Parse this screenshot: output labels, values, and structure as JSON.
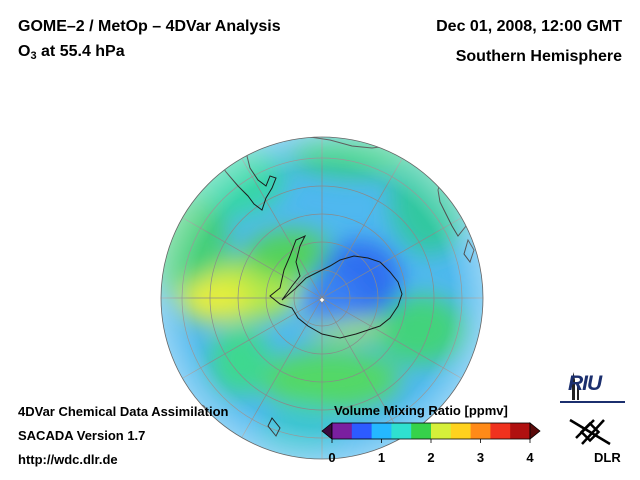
{
  "header": {
    "title_left": "GOME–2 / MetOp – 4DVar Analysis",
    "species_base": "O",
    "species_sub": "3",
    "species_rest": " at 55.4 hPa",
    "title_right": "Dec 01, 2008, 12:00 GMT",
    "subtitle_right": "Southern Hemisphere"
  },
  "footer": {
    "line1": "4DVar Chemical Data Assimilation",
    "line2": "SACADA Version 1.7",
    "line3": "http://wdc.dlr.de"
  },
  "colorbar": {
    "title": "Volume Mixing Ratio [ppmv]",
    "ticks": [
      "0",
      "1",
      "2",
      "3",
      "4"
    ],
    "min": 0,
    "max": 4,
    "colors": [
      "#7a1fa0",
      "#2d5bff",
      "#25b8ff",
      "#2fe0d0",
      "#36d24a",
      "#d6f03a",
      "#ffd21e",
      "#ff8a18",
      "#f0321e",
      "#b01010"
    ]
  },
  "logos": {
    "riu": "RIU",
    "dlr": "DLR"
  },
  "map": {
    "projection": "orthographic",
    "hemisphere": "Southern",
    "ocean_base_color": "#4fb8ef"
  }
}
